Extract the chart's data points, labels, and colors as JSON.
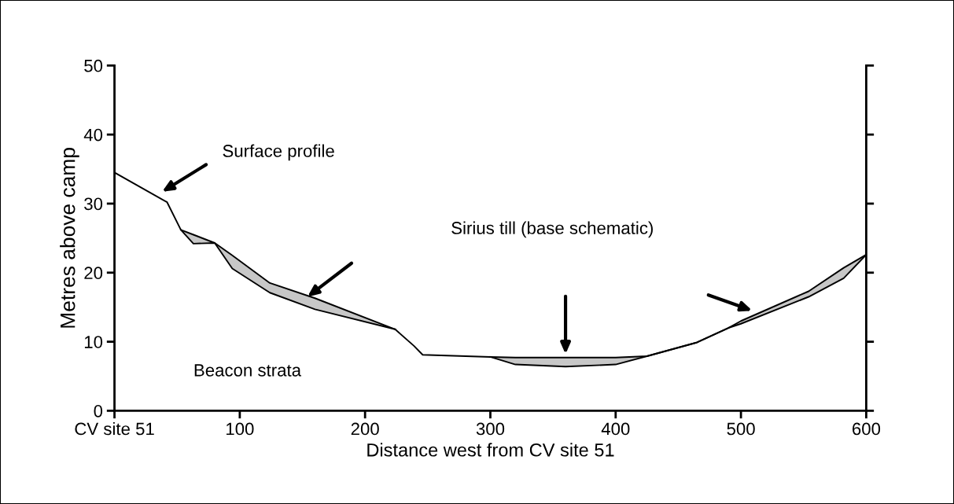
{
  "chart_data": {
    "type": "line",
    "xlabel": "Distance west from CV site 51",
    "ylabel": "Metres above camp",
    "x": [
      0,
      42,
      53,
      63,
      80,
      94,
      124,
      160,
      224,
      239,
      246,
      300,
      320,
      360,
      400,
      425,
      465,
      490,
      500,
      554,
      582,
      600
    ],
    "series": [
      {
        "color": "#000000",
        "values": [
          34.5,
          30.2,
          26.2,
          25.5,
          24.3,
          22.5,
          18.5,
          16.3,
          11.8,
          9.4,
          8.1,
          7.8,
          7.7,
          7.7,
          7.7,
          7.9,
          9.9,
          12.0,
          13.0,
          17.3,
          20.7,
          22.6
        ],
        "upper": [
          null,
          null,
          26.2,
          25.5,
          24.3,
          22.5,
          18.5,
          16.3,
          11.8,
          null,
          null,
          7.8,
          7.7,
          7.7,
          7.7,
          7.9,
          9.9,
          12.0,
          13.0,
          17.3,
          20.7,
          22.6
        ],
        "lower": [
          null,
          null,
          26.2,
          24.2,
          24.3,
          20.6,
          17.1,
          14.7,
          11.8,
          null,
          null,
          7.8,
          6.7,
          6.4,
          6.7,
          7.9,
          9.9,
          12.0,
          12.6,
          16.5,
          19.2,
          22.6
        ]
      },
      {
        "color": "#000000",
        "values": [
          null,
          null,
          26.2,
          24.2,
          24.3,
          20.6,
          17.1,
          14.7,
          11.8,
          null,
          null,
          7.8,
          6.7,
          6.4,
          6.7,
          7.9,
          9.9,
          12.0,
          12.6,
          16.5,
          19.2,
          22.6
        ]
      }
    ],
    "xlim": [
      0,
      600
    ],
    "ylim": [
      0,
      50
    ],
    "xticks": [
      {
        "value": 0,
        "label": "CV site 51"
      },
      100,
      200,
      300,
      400,
      500,
      600
    ],
    "yticks": [
      0,
      10,
      20,
      30,
      40,
      50
    ],
    "grid": false,
    "marker": "none",
    "line_style": "solid",
    "annotations": [
      "Surface profile",
      "Sirius till (base schematic)",
      "Beacon strata"
    ]
  }
}
